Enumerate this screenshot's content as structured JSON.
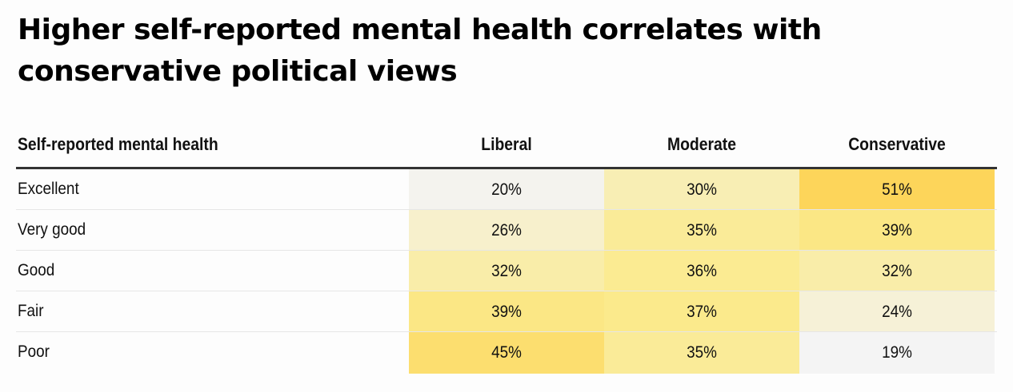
{
  "title": "Higher self-reported mental health correlates with conservative political views",
  "table": {
    "header_label": "Self-reported mental health",
    "columns": [
      "Liberal",
      "Moderate",
      "Conservative"
    ],
    "rows": [
      {
        "label": "Excellent",
        "values": [
          "20%",
          "30%",
          "51%"
        ]
      },
      {
        "label": "Very good",
        "values": [
          "26%",
          "35%",
          "39%"
        ]
      },
      {
        "label": "Good",
        "values": [
          "32%",
          "36%",
          "32%"
        ]
      },
      {
        "label": "Fair",
        "values": [
          "39%",
          "37%",
          "24%"
        ]
      },
      {
        "label": "Poor",
        "values": [
          "45%",
          "35%",
          "19%"
        ]
      }
    ]
  },
  "chart_data": {
    "type": "heatmap",
    "title": "Higher self-reported mental health correlates with conservative political views",
    "xlabel": "",
    "ylabel": "Self-reported mental health",
    "categories": [
      "Liberal",
      "Moderate",
      "Conservative"
    ],
    "rows": [
      "Excellent",
      "Very good",
      "Good",
      "Fair",
      "Poor"
    ],
    "values": [
      [
        20,
        30,
        51
      ],
      [
        26,
        35,
        39
      ],
      [
        32,
        36,
        32
      ],
      [
        39,
        37,
        24
      ],
      [
        45,
        35,
        19
      ]
    ],
    "color_scale": {
      "low": "#f4f4f4",
      "mid": "#fbea8c",
      "high": "#fdd55a"
    }
  }
}
